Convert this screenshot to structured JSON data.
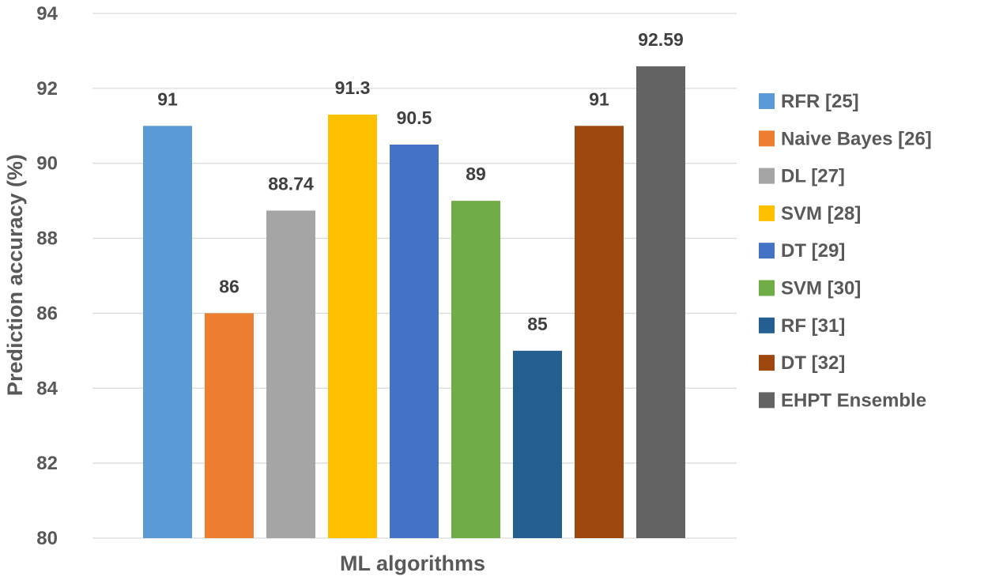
{
  "chart_data": {
    "type": "bar",
    "title": "",
    "xlabel": "ML algorithms",
    "ylabel": "Prediction accuracy (%)",
    "ylim": [
      80,
      94
    ],
    "yticks": [
      80,
      82,
      84,
      86,
      88,
      90,
      92,
      94
    ],
    "grid": true,
    "legend_position": "right",
    "series": [
      {
        "name": "RFR [25]",
        "value": 91,
        "label": "91",
        "color": "#5B9BD5"
      },
      {
        "name": "Naive Bayes [26]",
        "value": 86,
        "label": "86",
        "color": "#ED7D31"
      },
      {
        "name": "DL [27]",
        "value": 88.74,
        "label": "88.74",
        "color": "#A5A5A5"
      },
      {
        "name": "SVM [28]",
        "value": 91.3,
        "label": "91.3",
        "color": "#FFC000"
      },
      {
        "name": "DT [29]",
        "value": 90.5,
        "label": "90.5",
        "color": "#4472C4"
      },
      {
        "name": "SVM [30]",
        "value": 89,
        "label": "89",
        "color": "#70AD47"
      },
      {
        "name": "RF [31]",
        "value": 85,
        "label": "85",
        "color": "#255E91"
      },
      {
        "name": "DT [32]",
        "value": 91,
        "label": "91",
        "color": "#9E480E"
      },
      {
        "name": "EHPT Ensemble",
        "value": 92.59,
        "label": "92.59",
        "color": "#636363"
      }
    ]
  }
}
